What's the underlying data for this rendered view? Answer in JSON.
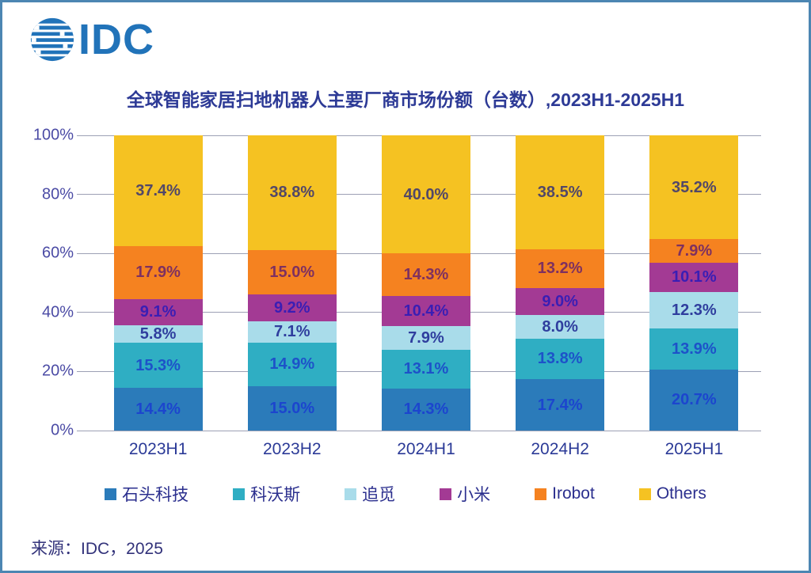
{
  "logo": {
    "text": "IDC",
    "color": "#2173b9"
  },
  "title": {
    "text": "全球智能家居扫地机器人主要厂商市场份额（台数）,2023H1-2025H1",
    "color": "#2d3a96"
  },
  "source": {
    "text": "来源：IDC，2025",
    "color": "#32327a"
  },
  "colors": {
    "page_border": "#4c86b2",
    "grid": "#9ca0b4",
    "y_axis_label": "#4b4ba5",
    "x_axis_label": "#2b3a97",
    "legend_text": "#2b2f8e",
    "background": "#ffffff"
  },
  "chart_data": {
    "type": "bar",
    "stacked": true,
    "unit": "%",
    "title": "全球智能家居扫地机器人主要厂商市场份额（台数）,2023H1-2025H1",
    "categories": [
      "2023H1",
      "2023H2",
      "2024H1",
      "2024H2",
      "2025H1"
    ],
    "series": [
      {
        "name": "石头科技",
        "color": "#2b7bba",
        "label_color": "#1c45ce",
        "values": [
          14.4,
          15.0,
          14.3,
          17.4,
          20.7
        ]
      },
      {
        "name": "科沃斯",
        "color": "#2faec3",
        "label_color": "#1d52c9",
        "values": [
          15.3,
          14.9,
          13.1,
          13.8,
          13.9
        ]
      },
      {
        "name": "追觅",
        "color": "#a9dcea",
        "label_color": "#2f3e9e",
        "values": [
          5.8,
          7.1,
          7.9,
          8.0,
          12.3
        ]
      },
      {
        "name": "小米",
        "color": "#a33a94",
        "label_color": "#3a1eb4",
        "values": [
          9.1,
          9.2,
          10.4,
          9.0,
          10.1
        ]
      },
      {
        "name": "Irobot",
        "color": "#f58220",
        "label_color": "#7e3060",
        "values": [
          17.9,
          15.0,
          14.3,
          13.2,
          7.9
        ]
      },
      {
        "name": "Others",
        "color": "#f5c222",
        "label_color": "#524768",
        "values": [
          37.4,
          38.8,
          40.0,
          38.5,
          35.2
        ]
      }
    ],
    "y_axis": {
      "min": 0,
      "max": 100,
      "tick_step": 20,
      "ticks": [
        "0%",
        "20%",
        "40%",
        "60%",
        "80%",
        "100%"
      ]
    },
    "grid": true,
    "legend_position": "bottom",
    "value_label_format": "{v}%"
  }
}
